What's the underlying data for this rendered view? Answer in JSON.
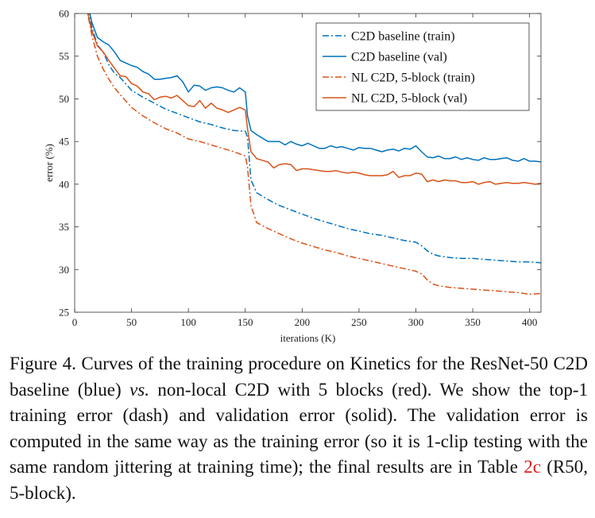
{
  "chart_data": {
    "type": "line",
    "xlabel": "iterations (K)",
    "ylabel": "error (%)",
    "xlim": [
      0,
      410
    ],
    "ylim": [
      25,
      60
    ],
    "xticks": [
      0,
      50,
      100,
      150,
      200,
      250,
      300,
      350,
      400
    ],
    "yticks": [
      25,
      30,
      35,
      40,
      45,
      50,
      55,
      60
    ],
    "legend_position": "top-right",
    "grid": false,
    "series": [
      {
        "name": "C2D baseline (train)",
        "color": "#0072BD",
        "style": "dashdot",
        "x": [
          10,
          15,
          20,
          25,
          30,
          35,
          40,
          50,
          60,
          70,
          80,
          90,
          100,
          110,
          120,
          130,
          140,
          150,
          152,
          155,
          160,
          170,
          180,
          190,
          200,
          210,
          220,
          230,
          240,
          250,
          260,
          270,
          280,
          290,
          300,
          305,
          310,
          315,
          320,
          330,
          340,
          350,
          360,
          370,
          380,
          390,
          400,
          410
        ],
        "y": [
          62,
          58.5,
          56.3,
          55.5,
          54,
          53,
          52.5,
          51,
          50.2,
          49.5,
          48.8,
          48.3,
          47.8,
          47.3,
          47,
          46.6,
          46.3,
          46.2,
          45.5,
          40.5,
          39,
          38.2,
          37.5,
          37,
          36.5,
          36,
          35.6,
          35.2,
          34.8,
          34.5,
          34.2,
          34,
          33.7,
          33.4,
          33.2,
          32.8,
          32.2,
          31.8,
          31.6,
          31.4,
          31.3,
          31.3,
          31.2,
          31.1,
          31,
          30.9,
          30.9,
          30.8
        ]
      },
      {
        "name": "C2D baseline (val)",
        "color": "#0072BD",
        "style": "solid",
        "x": [
          10,
          15,
          20,
          25,
          30,
          35,
          40,
          45,
          50,
          55,
          60,
          65,
          70,
          75,
          80,
          85,
          90,
          95,
          100,
          105,
          110,
          115,
          120,
          125,
          130,
          135,
          140,
          145,
          150,
          152,
          155,
          160,
          165,
          170,
          175,
          180,
          185,
          190,
          195,
          200,
          205,
          210,
          215,
          220,
          225,
          230,
          235,
          240,
          245,
          250,
          255,
          260,
          265,
          270,
          275,
          280,
          285,
          290,
          295,
          300,
          305,
          310,
          315,
          320,
          325,
          330,
          335,
          340,
          345,
          350,
          355,
          360,
          365,
          370,
          375,
          380,
          385,
          390,
          395,
          400,
          405,
          410
        ],
        "y": [
          62,
          59,
          57.2,
          56.7,
          56.3,
          55.5,
          54.5,
          54.2,
          53.9,
          53.7,
          53.2,
          52.9,
          52.3,
          52.3,
          52.4,
          52.5,
          52.7,
          52,
          50.8,
          51.6,
          51.5,
          51,
          51.3,
          51.4,
          51.3,
          51,
          50.8,
          51.3,
          50.8,
          48,
          46.3,
          45.8,
          45.4,
          45,
          45,
          45,
          44.6,
          45,
          44.7,
          44.5,
          44.8,
          44.5,
          44.2,
          44.2,
          44.5,
          44.3,
          44.4,
          44.2,
          44,
          44.3,
          44.2,
          44.2,
          44,
          43.8,
          44,
          44.1,
          43.9,
          44.2,
          44.1,
          44.5,
          43.8,
          43.2,
          43.1,
          43.3,
          43,
          43,
          43.2,
          42.9,
          43.1,
          42.9,
          42.8,
          43.1,
          42.9,
          42.9,
          43,
          43.1,
          42.8,
          42.7,
          43,
          42.7,
          42.7,
          42.6
        ]
      },
      {
        "name": "NL C2D, 5-block (train)",
        "color": "#D95319",
        "style": "dashdot",
        "x": [
          10,
          15,
          20,
          25,
          30,
          35,
          40,
          50,
          60,
          70,
          80,
          90,
          100,
          110,
          120,
          130,
          140,
          150,
          152,
          155,
          160,
          170,
          180,
          190,
          200,
          210,
          220,
          230,
          240,
          250,
          260,
          270,
          280,
          290,
          300,
          305,
          310,
          315,
          320,
          330,
          340,
          350,
          360,
          370,
          380,
          390,
          400,
          410
        ],
        "y": [
          61,
          57.5,
          55,
          53.5,
          52.3,
          51.3,
          50.5,
          49,
          48,
          47.2,
          46.5,
          46,
          45.3,
          45,
          44.6,
          44.2,
          43.8,
          43.3,
          42,
          37.5,
          35.5,
          34.8,
          34.2,
          33.6,
          33.1,
          32.7,
          32.3,
          32,
          31.6,
          31.3,
          31,
          30.7,
          30.4,
          30.1,
          29.8,
          29.5,
          28.8,
          28.3,
          28.1,
          27.9,
          27.8,
          27.7,
          27.6,
          27.5,
          27.4,
          27.3,
          27.1,
          27.2
        ]
      },
      {
        "name": "NL C2D, 5-block (val)",
        "color": "#D95319",
        "style": "solid",
        "x": [
          10,
          15,
          20,
          25,
          30,
          35,
          40,
          45,
          50,
          55,
          60,
          65,
          70,
          75,
          80,
          85,
          90,
          95,
          100,
          105,
          110,
          115,
          120,
          125,
          130,
          135,
          140,
          145,
          150,
          152,
          155,
          160,
          165,
          170,
          175,
          180,
          185,
          190,
          195,
          200,
          205,
          210,
          215,
          220,
          225,
          230,
          235,
          240,
          245,
          250,
          255,
          260,
          265,
          270,
          275,
          280,
          285,
          290,
          295,
          300,
          305,
          310,
          315,
          320,
          325,
          330,
          335,
          340,
          345,
          350,
          355,
          360,
          365,
          370,
          375,
          380,
          385,
          390,
          395,
          400,
          405,
          410
        ],
        "y": [
          61,
          58,
          56.2,
          55.5,
          54.5,
          53.6,
          52.7,
          52.6,
          51.8,
          51.5,
          50.8,
          50.6,
          49.9,
          50.2,
          50.3,
          50.1,
          50.4,
          49.8,
          49.2,
          49.1,
          49.8,
          48.9,
          49.5,
          48.9,
          48.7,
          48.4,
          48.7,
          49,
          48.7,
          46.5,
          43.8,
          43,
          42.8,
          42.6,
          41.9,
          42.3,
          42.4,
          42.3,
          41.6,
          41.8,
          41.8,
          41.7,
          41.6,
          41.5,
          41.5,
          41.6,
          41.4,
          41.3,
          41.4,
          41.3,
          41.1,
          41,
          41,
          41,
          41.1,
          41.5,
          40.8,
          41,
          41,
          41.3,
          41.2,
          40.3,
          40.5,
          40.3,
          40.5,
          40.4,
          40.4,
          40.2,
          40.2,
          40.3,
          40,
          40.2,
          40.3,
          40,
          40.1,
          40.2,
          40.1,
          40.1,
          40.2,
          40.1,
          40,
          40.1
        ]
      }
    ]
  },
  "caption": {
    "pre_ref": "Figure 4. Curves of the training procedure on Kinetics for the ResNet-50 C2D baseline (blue) ",
    "vs": "vs.",
    "mid": " non-local C2D with 5 blocks (red). We show the top-1 training error (dash) and validation error (solid). The validation error is computed in the same way as the training error (so it is 1-clip testing with the same random jittering at training time); the final results are in Table ",
    "ref": "2c",
    "post_ref": " (R50, 5-block)."
  }
}
